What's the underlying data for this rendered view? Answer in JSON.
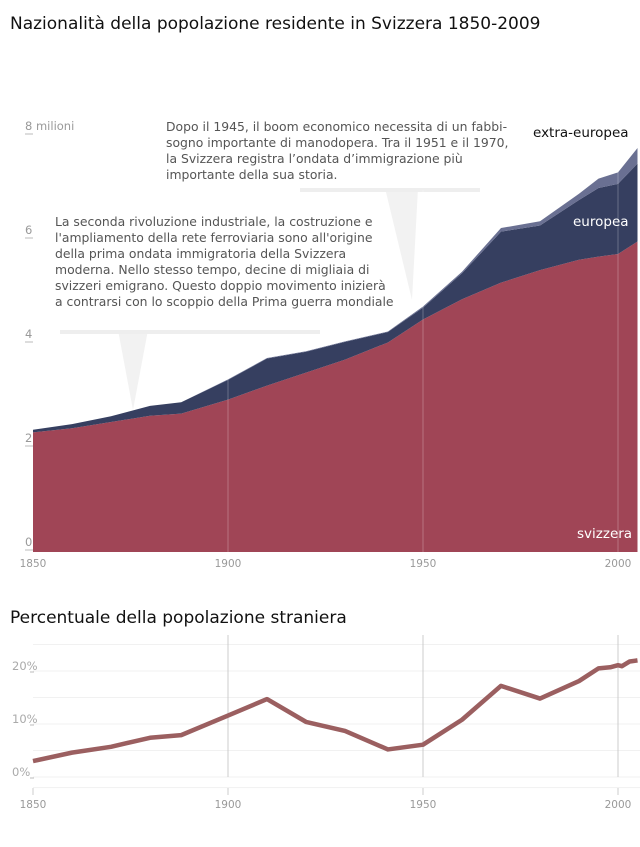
{
  "chart_data": [
    {
      "type": "area",
      "stacked": true,
      "title": "Nazionalità della popolazione residente in Svizzera 1850-2009",
      "xlim": [
        1850,
        2005.5
      ],
      "ylim": [
        0,
        8.5
      ],
      "ylabel": "milioni",
      "yticks": [
        {
          "v": 0,
          "label": "0"
        },
        {
          "v": 2,
          "label": "2"
        },
        {
          "v": 4,
          "label": "4"
        },
        {
          "v": 6,
          "label": "6"
        },
        {
          "v": 8,
          "label": "8 milioni"
        }
      ],
      "xticks": [
        1850,
        1900,
        1950,
        2000
      ],
      "x": [
        1850,
        1860,
        1870,
        1880,
        1888,
        1900,
        1910,
        1920,
        1930,
        1941,
        1950,
        1960,
        1970,
        1980,
        1990,
        1995,
        2000,
        2005
      ],
      "series": [
        {
          "name": "svizzera",
          "color": "#a04556",
          "values": [
            2.3,
            2.38,
            2.5,
            2.62,
            2.66,
            2.93,
            3.2,
            3.45,
            3.7,
            4.03,
            4.47,
            4.86,
            5.18,
            5.42,
            5.62,
            5.68,
            5.73,
            5.97
          ]
        },
        {
          "name": "europea",
          "color": "#363f60",
          "values": [
            0.05,
            0.08,
            0.11,
            0.19,
            0.22,
            0.38,
            0.52,
            0.4,
            0.34,
            0.2,
            0.23,
            0.5,
            0.98,
            0.86,
            1.15,
            1.32,
            1.35,
            1.5
          ]
        },
        {
          "name": "extra-europea",
          "color": "#6a7092",
          "values": [
            0.0,
            0.0,
            0.0,
            0.0,
            0.0,
            0.01,
            0.01,
            0.01,
            0.01,
            0.01,
            0.02,
            0.03,
            0.07,
            0.08,
            0.12,
            0.18,
            0.22,
            0.3
          ]
        }
      ],
      "annotations": [
        "Dopo il 1945, il boom economico necessita di un fabbi-\nsogno importante di manodopera. Tra il 1951 e il 1970,\nla Svizzera registra l’ondata d’immigrazione più\nimportante della sua storia.",
        "La seconda rivoluzione industriale, la costruzione e\nl'ampliamento della rete ferroviaria sono all'origine\ndella prima ondata immigratoria della Svizzera\nmoderna. Nello stesso tempo, decine di migliaia di\nsvizzeri emigrano. Questo doppio movimento inizierà\na contrarsi con lo scoppio della Prima guerra mondiale"
      ]
    },
    {
      "type": "line",
      "title": "Percentuale della popolazione straniera",
      "xlim": [
        1850,
        2005.5
      ],
      "ylim": [
        -2,
        25
      ],
      "yticks": [
        {
          "v": 0,
          "label": "0%"
        },
        {
          "v": 10,
          "label": "10%"
        },
        {
          "v": 20,
          "label": "20%"
        }
      ],
      "xticks": [
        1850,
        1900,
        1950,
        2000
      ],
      "color": "#9b5f60",
      "x": [
        1850,
        1860,
        1870,
        1880,
        1888,
        1900,
        1910,
        1920,
        1930,
        1941,
        1950,
        1960,
        1970,
        1980,
        1990,
        1995,
        1998,
        2000,
        2001,
        2003,
        2005
      ],
      "values": [
        3.0,
        4.6,
        5.7,
        7.4,
        7.9,
        11.6,
        14.7,
        10.4,
        8.7,
        5.2,
        6.1,
        10.8,
        17.2,
        14.8,
        18.1,
        20.5,
        20.7,
        21.1,
        20.9,
        21.8,
        22.0
      ]
    }
  ]
}
